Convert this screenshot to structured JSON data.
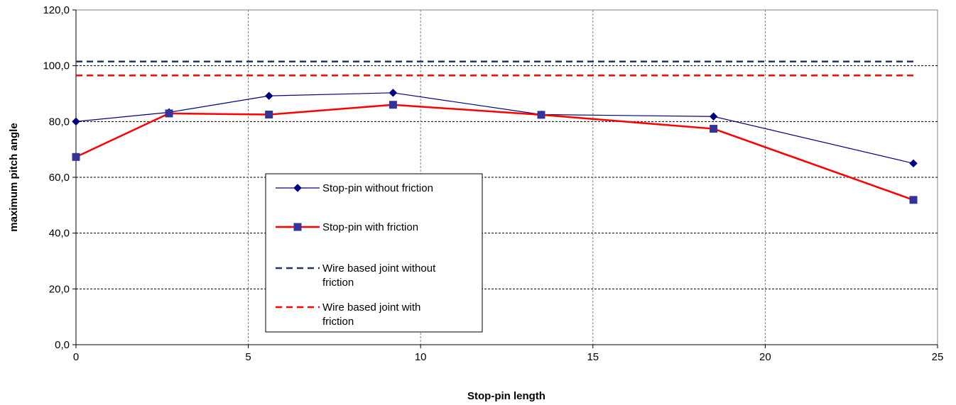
{
  "chart_data": {
    "type": "line",
    "xlabel": "Stop-pin length",
    "ylabel": "maximum pitch angle",
    "xlim": [
      0,
      25
    ],
    "ylim": [
      0,
      120
    ],
    "x_ticks": [
      "0",
      "5",
      "10",
      "15",
      "20",
      "25"
    ],
    "y_ticks": [
      "0,0",
      "20,0",
      "40,0",
      "60,0",
      "80,0",
      "100,0",
      "120,0"
    ],
    "grid": true,
    "legend_position": "inside-center-left",
    "series": [
      {
        "name": "Stop-pin without friction",
        "style": "solid-diamond",
        "line_color": "#000080",
        "marker_color": "#000080",
        "x": [
          0,
          2.7,
          5.6,
          9.2,
          13.5,
          18.5,
          24.3
        ],
        "values": [
          80.0,
          83.3,
          89.2,
          90.3,
          82.5,
          81.8,
          65.0
        ]
      },
      {
        "name": "Stop-pin with friction",
        "style": "solid-square",
        "line_color": "#ff0000",
        "marker_color": "#333399",
        "x": [
          0,
          2.7,
          5.6,
          9.2,
          13.5,
          18.5,
          24.3
        ],
        "values": [
          67.3,
          82.9,
          82.5,
          86.0,
          82.4,
          77.4,
          51.9
        ]
      },
      {
        "name": "Wire based joint without friction",
        "name_lines": [
          "Wire based joint without",
          "friction"
        ],
        "style": "dashed",
        "line_color": "#1f3864",
        "x": [
          0,
          24.3
        ],
        "values": [
          101.5,
          101.5
        ]
      },
      {
        "name": "Wire based joint with friction",
        "name_lines": [
          "Wire based joint with",
          "friction"
        ],
        "style": "dashed",
        "line_color": "#ff0000",
        "x": [
          0,
          24.3
        ],
        "values": [
          96.5,
          96.5
        ]
      }
    ]
  }
}
